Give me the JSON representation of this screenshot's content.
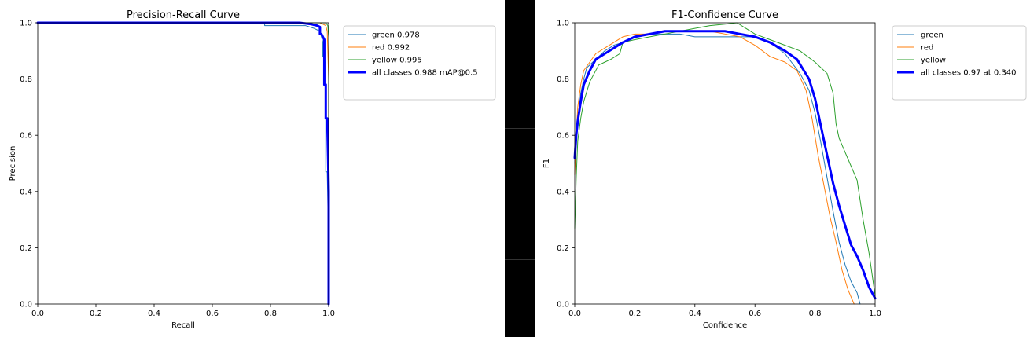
{
  "chart_data": [
    {
      "type": "line",
      "title": "Precision-Recall Curve",
      "xlabel": "Recall",
      "ylabel": "Precision",
      "xlim": [
        0.0,
        1.0
      ],
      "ylim": [
        0.0,
        1.0
      ],
      "xticks": [
        "0.0",
        "0.2",
        "0.4",
        "0.6",
        "0.8",
        "1.0"
      ],
      "yticks": [
        "0.0",
        "0.2",
        "0.4",
        "0.6",
        "0.8",
        "1.0"
      ],
      "grid": false,
      "legend_position": "top-right",
      "series": [
        {
          "name": "green 0.978",
          "color": "#1f77b4",
          "style": "thin",
          "x": [
            0.0,
            0.78,
            0.78,
            0.92,
            0.95,
            0.97,
            0.975,
            0.98,
            0.98,
            0.985,
            0.985,
            0.99,
            0.99,
            0.995,
            1.0,
            1.0
          ],
          "y": [
            1.0,
            1.0,
            0.99,
            0.99,
            0.98,
            0.97,
            0.95,
            0.93,
            0.88,
            0.88,
            0.86,
            0.86,
            0.47,
            0.47,
            0.2,
            0.0
          ]
        },
        {
          "name": "red 0.992",
          "color": "#ff7f0e",
          "style": "thin",
          "x": [
            0.0,
            0.94,
            0.97,
            0.99,
            0.995,
            1.0,
            1.0
          ],
          "y": [
            1.0,
            1.0,
            1.0,
            0.99,
            0.97,
            0.8,
            0.0
          ]
        },
        {
          "name": "yellow 0.995",
          "color": "#2ca02c",
          "style": "thin",
          "x": [
            0.0,
            0.98,
            0.99,
            0.997,
            1.0,
            1.0
          ],
          "y": [
            1.0,
            1.0,
            1.0,
            0.99,
            0.95,
            0.0
          ]
        },
        {
          "name": "all classes 0.988 mAP@0.5",
          "color": "#0000ff",
          "style": "thick",
          "x": [
            0.0,
            0.9,
            0.94,
            0.96,
            0.97,
            0.97,
            0.975,
            0.98,
            0.985,
            0.985,
            0.99,
            0.99,
            0.995,
            0.998,
            1.0,
            1.0
          ],
          "y": [
            1.0,
            1.0,
            0.995,
            0.99,
            0.985,
            0.96,
            0.96,
            0.95,
            0.94,
            0.78,
            0.78,
            0.66,
            0.66,
            0.52,
            0.4,
            0.0
          ]
        }
      ]
    },
    {
      "type": "line",
      "title": "F1-Confidence Curve",
      "xlabel": "Confidence",
      "ylabel": "F1",
      "xlim": [
        0.0,
        1.0
      ],
      "ylim": [
        0.0,
        1.0
      ],
      "xticks": [
        "0.0",
        "0.2",
        "0.4",
        "0.6",
        "0.8",
        "1.0"
      ],
      "yticks": [
        "0.0",
        "0.2",
        "0.4",
        "0.6",
        "0.8",
        "1.0"
      ],
      "grid": false,
      "legend_position": "top-right",
      "series": [
        {
          "name": "green",
          "color": "#1f77b4",
          "style": "thin",
          "x": [
            0.0,
            0.005,
            0.01,
            0.02,
            0.03,
            0.04,
            0.06,
            0.08,
            0.1,
            0.13,
            0.16,
            0.2,
            0.25,
            0.3,
            0.35,
            0.4,
            0.45,
            0.5,
            0.55,
            0.6,
            0.65,
            0.7,
            0.75,
            0.78,
            0.8,
            0.82,
            0.84,
            0.86,
            0.88,
            0.9,
            0.92,
            0.94,
            0.95
          ],
          "y": [
            0.5,
            0.58,
            0.65,
            0.75,
            0.8,
            0.84,
            0.86,
            0.88,
            0.9,
            0.92,
            0.93,
            0.95,
            0.96,
            0.96,
            0.96,
            0.95,
            0.95,
            0.95,
            0.95,
            0.95,
            0.93,
            0.89,
            0.82,
            0.76,
            0.68,
            0.57,
            0.45,
            0.33,
            0.22,
            0.14,
            0.08,
            0.04,
            0.0
          ]
        },
        {
          "name": "red",
          "color": "#ff7f0e",
          "style": "thin",
          "x": [
            0.0,
            0.005,
            0.01,
            0.02,
            0.03,
            0.05,
            0.07,
            0.1,
            0.13,
            0.16,
            0.2,
            0.25,
            0.3,
            0.35,
            0.4,
            0.45,
            0.5,
            0.55,
            0.6,
            0.65,
            0.7,
            0.74,
            0.77,
            0.79,
            0.81,
            0.83,
            0.85,
            0.87,
            0.89,
            0.91,
            0.93
          ],
          "y": [
            0.46,
            0.6,
            0.7,
            0.78,
            0.83,
            0.86,
            0.89,
            0.91,
            0.93,
            0.95,
            0.96,
            0.96,
            0.97,
            0.97,
            0.97,
            0.97,
            0.96,
            0.95,
            0.92,
            0.88,
            0.86,
            0.83,
            0.76,
            0.66,
            0.53,
            0.42,
            0.31,
            0.22,
            0.12,
            0.05,
            0.0
          ]
        },
        {
          "name": "yellow",
          "color": "#2ca02c",
          "style": "thin",
          "x": [
            0.0,
            0.005,
            0.01,
            0.02,
            0.03,
            0.05,
            0.08,
            0.1,
            0.12,
            0.15,
            0.16,
            0.2,
            0.25,
            0.3,
            0.35,
            0.4,
            0.45,
            0.5,
            0.54,
            0.57,
            0.6,
            0.65,
            0.7,
            0.75,
            0.8,
            0.84,
            0.86,
            0.87,
            0.88,
            0.9,
            0.92,
            0.94,
            0.96,
            0.98,
            1.0
          ],
          "y": [
            0.27,
            0.45,
            0.58,
            0.66,
            0.72,
            0.79,
            0.85,
            0.86,
            0.87,
            0.89,
            0.93,
            0.94,
            0.95,
            0.96,
            0.97,
            0.98,
            0.99,
            0.995,
            1.0,
            0.98,
            0.96,
            0.94,
            0.92,
            0.9,
            0.86,
            0.82,
            0.75,
            0.64,
            0.59,
            0.54,
            0.49,
            0.44,
            0.3,
            0.18,
            0.03
          ]
        },
        {
          "name": "all classes 0.97 at 0.340",
          "color": "#0000ff",
          "style": "thick",
          "x": [
            0.0,
            0.005,
            0.01,
            0.02,
            0.03,
            0.05,
            0.07,
            0.1,
            0.13,
            0.16,
            0.2,
            0.25,
            0.3,
            0.34,
            0.4,
            0.45,
            0.5,
            0.55,
            0.6,
            0.65,
            0.7,
            0.74,
            0.78,
            0.8,
            0.82,
            0.84,
            0.86,
            0.88,
            0.9,
            0.92,
            0.94,
            0.96,
            0.98,
            1.0
          ],
          "y": [
            0.52,
            0.6,
            0.65,
            0.72,
            0.78,
            0.83,
            0.87,
            0.89,
            0.91,
            0.93,
            0.95,
            0.96,
            0.97,
            0.97,
            0.97,
            0.97,
            0.97,
            0.96,
            0.95,
            0.93,
            0.9,
            0.87,
            0.8,
            0.73,
            0.63,
            0.53,
            0.43,
            0.35,
            0.28,
            0.21,
            0.17,
            0.12,
            0.06,
            0.02
          ]
        }
      ]
    }
  ]
}
